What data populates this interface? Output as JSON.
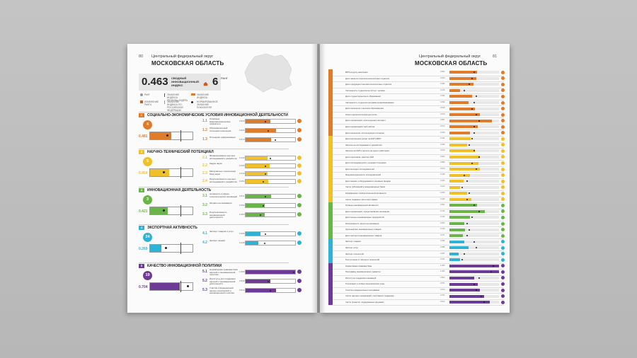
{
  "left_page": {
    "page_number": "80",
    "region": "Центральный федеральный округ",
    "oblast": "МОСКОВСКАЯ ОБЛАСТЬ",
    "index_value": "0.463",
    "index_label": "СВОДНЫЙ ИННОВАЦИОННЫЙ ИНДЕКС",
    "rank_value": "6",
    "rank_label": "РАНГ",
    "legend": [
      "РАНГ",
      "ЗНАЧЕНИЕ ИНДЕКСА РЕГИОНА-ЛИДЕРА",
      "ЗНАЧЕНИЕ ИНДЕКСА",
      "ИЗМЕНЕНИЕ РАНГА",
      "ЗНАЧЕНИЕ ИНДЕКСА ПО РОССИЙСКОЙ ФЕДЕРАЦИИ",
      "НОРМИРОВАННОЕ ЗНАЧЕНИЕ ПОКАЗАТЕЛЯ"
    ],
    "sections": [
      {
        "num": "1",
        "title": "СОЦИАЛЬНО-ЭКОНОМИЧЕСКИЕ УСЛОВИЯ ИННОВАЦИОННОЙ ДЕЯТЕЛЬНОСТИ",
        "rank": "4",
        "score": "0.481",
        "fill": 0.5,
        "dot": 0.38,
        "subs": [
          {
            "code": "1.1",
            "label": "Основные макроэкономические показатели",
            "value": "0.503",
            "fill": 0.5,
            "dot": 0.4
          },
          {
            "code": "1.2",
            "label": "Образовательный потенциал населения",
            "value": "0.621",
            "fill": 0.62,
            "dot": 0.45
          },
          {
            "code": "1.3",
            "label": "Потенциал цифровизации",
            "value": "0.514",
            "fill": 0.51,
            "dot": 0.6
          }
        ]
      },
      {
        "num": "2",
        "title": "НАУЧНО-ТЕХНИЧЕСКИЙ ПОТЕНЦИАЛ",
        "rank": "5",
        "score": "0.454",
        "fill": 0.45,
        "dot": 0.3,
        "subs": [
          {
            "code": "2.1",
            "label": "Финансирование научных исследований и разработок",
            "value": "0.442",
            "fill": 0.44,
            "dot": 0.5
          },
          {
            "code": "2.2",
            "label": "Кадры науки",
            "value": "0.495",
            "fill": 0.49,
            "dot": 0.4
          },
          {
            "code": "2.3",
            "label": "Материально-техническая база науки",
            "value": "0.442",
            "fill": 0.44,
            "dot": 0.4
          },
          {
            "code": "2.4",
            "label": "Результативность научных исследований и разработок",
            "value": "0.461",
            "fill": 0.46,
            "dot": 0.35
          }
        ]
      },
      {
        "num": "3",
        "title": "ИННОВАЦИОННАЯ ДЕЯТЕЛЬНОСТЬ",
        "rank": "3",
        "score": "0.421",
        "fill": 0.42,
        "dot": 0.3,
        "subs": [
          {
            "code": "3.1",
            "label": "Активность в сфере технологических инноваций",
            "value": "0.511",
            "fill": 0.51,
            "dot": 0.4
          },
          {
            "code": "3.2",
            "label": "Затраты на инновации",
            "value": "0.392",
            "fill": 0.39,
            "dot": 0.35
          },
          {
            "code": "3.3",
            "label": "Результативность инновационной деятельности",
            "value": "0.390",
            "fill": 0.39,
            "dot": 0.3
          }
        ]
      },
      {
        "num": "4",
        "title": "ЭКСПОРТНАЯ АКТИВНОСТЬ",
        "rank": "24",
        "score": "0.269",
        "fill": 0.27,
        "dot": 0.35,
        "subs": [
          {
            "code": "4.1",
            "label": "Экспорт товаров и услуг",
            "value": "0.306",
            "fill": 0.3,
            "dot": 0.4
          },
          {
            "code": "4.2",
            "label": "Экспорт знаний",
            "value": "0.248",
            "fill": 0.25,
            "dot": 0.38
          }
        ]
      },
      {
        "num": "5",
        "title": "КАЧЕСТВО ИННОВАЦИОННОЙ ПОЛИТИКИ",
        "rank": "19",
        "score": "0.704",
        "fill": 0.7,
        "dot": 0.85,
        "subs": [
          {
            "code": "5.1",
            "label": "Нормативная правовая база научной и инновационной политики",
            "value": "1.000",
            "fill": 1.0,
            "dot": 0.98
          },
          {
            "code": "5.2",
            "label": "Институты для поддержки научной и инновационной деятельности",
            "value": "0.500",
            "fill": 0.5,
            "dot": 0.45
          },
          {
            "code": "5.3",
            "label": "Участие в федеральной научно-технической и инновационной политике",
            "value": "0.613",
            "fill": 0.61,
            "dot": 0.5
          }
        ]
      }
    ]
  },
  "right_page": {
    "page_number": "81",
    "region": "Центральный федеральный округ",
    "oblast": "МОСКОВСКАЯ ОБЛАСТЬ",
    "rows": [
      {
        "label": "ВРП на душу населения",
        "value": "0.561",
        "fill": 0.56,
        "dot": 0.5,
        "g": 1
      },
      {
        "label": "Доля занятых в высокотехнологичных отраслях",
        "value": "0.540",
        "fill": 0.54,
        "dot": 0.45,
        "g": 1
      },
      {
        "label": "Доля продукции в высокотехнологичных отраслях",
        "value": "0.482",
        "fill": 0.48,
        "dot": 0.4,
        "g": 1
      },
      {
        "label": "Численность студентов на 10 тыс. человек",
        "value": "0.218",
        "fill": 0.22,
        "dot": 0.3,
        "g": 1
      },
      {
        "label": "Доля студентов высшего образования",
        "value": "0.452",
        "fill": 0.45,
        "dot": 0.55,
        "g": 1
      },
      {
        "label": "Численность студентов программ профобразования",
        "value": "0.394",
        "fill": 0.39,
        "dot": 0.5,
        "g": 1
      },
      {
        "label": "Доля населения с высшим образованием",
        "value": "0.518",
        "fill": 0.52,
        "dot": 0.45,
        "g": 1
      },
      {
        "label": "Охват широкополосным доступом",
        "value": "0.610",
        "fill": 0.61,
        "dot": 0.55,
        "g": 1
      },
      {
        "label": "Доля организаций, использующих интернет",
        "value": "0.851",
        "fill": 0.85,
        "dot": 0.6,
        "g": 1
      },
      {
        "label": "Доля организаций с веб-сайтом",
        "value": "0.574",
        "fill": 0.57,
        "dot": 0.5,
        "g": 1
      },
      {
        "label": "Доля населения, использующего интернет",
        "value": "0.420",
        "fill": 0.42,
        "dot": 0.5,
        "g": 1
      },
      {
        "label": "Доля внутренних затрат на ИиР в ВРП",
        "value": "0.431",
        "fill": 0.43,
        "dot": 0.45,
        "g": 2
      },
      {
        "label": "Затраты на исследования и разработки",
        "value": "0.354",
        "fill": 0.35,
        "dot": 0.4,
        "g": 2
      },
      {
        "label": "Затраты на ИиР в расчете на одного работника",
        "value": "0.516",
        "fill": 0.52,
        "dot": 0.5,
        "g": 2
      },
      {
        "label": "Доля персонала, занятого ИиР",
        "value": "0.624",
        "fill": 0.62,
        "dot": 0.6,
        "g": 2
      },
      {
        "label": "Доля исследователей с учеными степенями",
        "value": "0.589",
        "fill": 0.59,
        "dot": 0.45,
        "g": 2
      },
      {
        "label": "Доля молодых исследователей",
        "value": "0.613",
        "fill": 0.61,
        "dot": 0.55,
        "g": 2
      },
      {
        "label": "Фондовооруженность исследователей",
        "value": "0.418",
        "fill": 0.42,
        "dot": 0.3,
        "g": 2
      },
      {
        "label": "Доля машин и оборудования в основных фондах",
        "value": "0.294",
        "fill": 0.29,
        "dot": 0.35,
        "g": 2
      },
      {
        "label": "Число публикаций в международных базах",
        "value": "0.212",
        "fill": 0.21,
        "dot": 0.25,
        "g": 2
      },
      {
        "label": "Коэффициент изобретательской активности",
        "value": "0.350",
        "fill": 0.35,
        "dot": 0.4,
        "g": 2
      },
      {
        "label": "Число поданных патентных заявок",
        "value": "0.442",
        "fill": 0.44,
        "dot": 0.35,
        "g": 2
      },
      {
        "label": "Уровень инновационной активности",
        "value": "0.561",
        "fill": 0.56,
        "dot": 0.5,
        "g": 3
      },
      {
        "label": "Доля организаций, осуществлявших инновации",
        "value": "0.722",
        "fill": 0.72,
        "dot": 0.6,
        "g": 3
      },
      {
        "label": "Доля малых инновационных предприятий",
        "value": "0.412",
        "fill": 0.41,
        "dot": 0.45,
        "g": 3
      },
      {
        "label": "Интенсивность затрат на инновации",
        "value": "0.305",
        "fill": 0.3,
        "dot": 0.35,
        "g": 3
      },
      {
        "label": "Удельный вес инновационных товаров",
        "value": "0.310",
        "fill": 0.31,
        "dot": 0.4,
        "g": 3
      },
      {
        "label": "Доля экспорта инновационных товаров",
        "value": "0.271",
        "fill": 0.27,
        "dot": 0.35,
        "g": 3
      },
      {
        "label": "Экспорт товаров",
        "value": "0.296",
        "fill": 0.3,
        "dot": 0.5,
        "g": 4
      },
      {
        "label": "Экспорт услуг",
        "value": "0.386",
        "fill": 0.39,
        "dot": 0.55,
        "g": 4
      },
      {
        "label": "Экспорт технологий",
        "value": "0.187",
        "fill": 0.19,
        "dot": 0.3,
        "g": 4
      },
      {
        "label": "Поступления от экспорта технологий",
        "value": "0.221",
        "fill": 0.22,
        "dot": 0.25,
        "g": 4
      },
      {
        "label": "Нормативная правовая база",
        "value": "1.000",
        "fill": 1.0,
        "dot": 0.9,
        "g": 5
      },
      {
        "label": "Программы инновационного развития",
        "value": "1.000",
        "fill": 1.0,
        "dot": 0.85,
        "g": 5
      },
      {
        "label": "Институты поддержки инноваций",
        "value": "0.500",
        "fill": 0.5,
        "dot": 0.6,
        "g": 5
      },
      {
        "label": "Технопарки и особые экономические зоны",
        "value": "0.571",
        "fill": 0.57,
        "dot": 0.5,
        "g": 5
      },
      {
        "label": "Участие в федеральных программах",
        "value": "0.613",
        "fill": 0.61,
        "dot": 0.55,
        "g": 5
      },
      {
        "label": "Число научных организаций, получивших поддержку",
        "value": "0.704",
        "fill": 0.7,
        "dot": 0.65,
        "g": 5
      },
      {
        "label": "Число проектов, поддержанных фондами",
        "value": "0.812",
        "fill": 0.81,
        "dot": 0.7,
        "g": 5
      }
    ]
  },
  "colors": {
    "g1": "#e07b2a",
    "g2": "#f0c02a",
    "g3": "#6ab547",
    "g4": "#2cb3d6",
    "g5": "#6d3b96"
  }
}
